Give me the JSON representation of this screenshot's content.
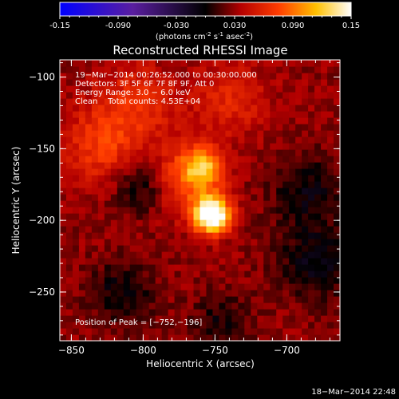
{
  "colorbar": {
    "ticks": [
      "-0.15",
      "-0.090",
      "-0.030",
      "0.030",
      "0.090",
      "0.15"
    ],
    "unit_label": "(photons cm",
    "unit_sup1": "-2",
    "unit_mid": " s",
    "unit_sup2": "-1",
    "unit_mid2": " asec",
    "unit_sup3": "-2",
    "unit_end": ")"
  },
  "chart_data": {
    "type": "heatmap",
    "title": "Reconstructed RHESSI Image",
    "xlabel": "Heliocentric X (arcsec)",
    "ylabel": "Heliocentric Y (arcsec)",
    "xlim": [
      -858,
      -663
    ],
    "ylim": [
      -284,
      -88
    ],
    "x_ticks": [
      -850,
      -800,
      -750,
      -700
    ],
    "y_ticks": [
      -100,
      -150,
      -200,
      -250
    ],
    "x_tick_labels": [
      "−850",
      "−800",
      "−750",
      "−700"
    ],
    "y_tick_labels": [
      "−100",
      "−150",
      "−200",
      "−250"
    ],
    "color_range": [
      -0.15,
      0.15
    ],
    "colormap": [
      "#0000ff",
      "#5a1ea0",
      "#000000",
      "#b40000",
      "#ff3c00",
      "#ffc000",
      "#ffffff"
    ],
    "peak": {
      "x": -752,
      "y": -196
    },
    "sources": [
      {
        "x": -752,
        "y": -196,
        "amp": 0.15,
        "sigma": 9
      },
      {
        "x": -758,
        "y": -162,
        "amp": 0.07,
        "sigma": 10
      },
      {
        "x": -772,
        "y": -172,
        "amp": 0.05,
        "sigma": 16
      },
      {
        "x": -830,
        "y": -148,
        "amp": 0.04,
        "sigma": 18
      },
      {
        "x": -805,
        "y": -120,
        "amp": 0.035,
        "sigma": 20
      },
      {
        "x": -740,
        "y": -115,
        "amp": 0.03,
        "sigma": 18
      },
      {
        "x": -800,
        "y": -175,
        "amp": -0.035,
        "sigma": 14
      },
      {
        "x": -685,
        "y": -180,
        "amp": -0.03,
        "sigma": 18
      },
      {
        "x": -680,
        "y": -230,
        "amp": -0.035,
        "sigma": 18
      },
      {
        "x": -815,
        "y": -250,
        "amp": -0.03,
        "sigma": 16
      },
      {
        "x": -745,
        "y": -270,
        "amp": -0.025,
        "sigma": 14
      }
    ]
  },
  "annotations": {
    "line1": "19−Mar−2014 00:26:52.000 to 00:30:00.000",
    "line2": "Detectors: 3F 5F 6F 7F 8F 9F, Att 0",
    "line3": "Energy Range: 3.0 − 6.0 keV",
    "line4": "Clean    Total counts: 4.53E+04",
    "peak_label": "Position of Peak = [−752,−196]"
  },
  "timestamp": "18−Mar−2014 22:48"
}
